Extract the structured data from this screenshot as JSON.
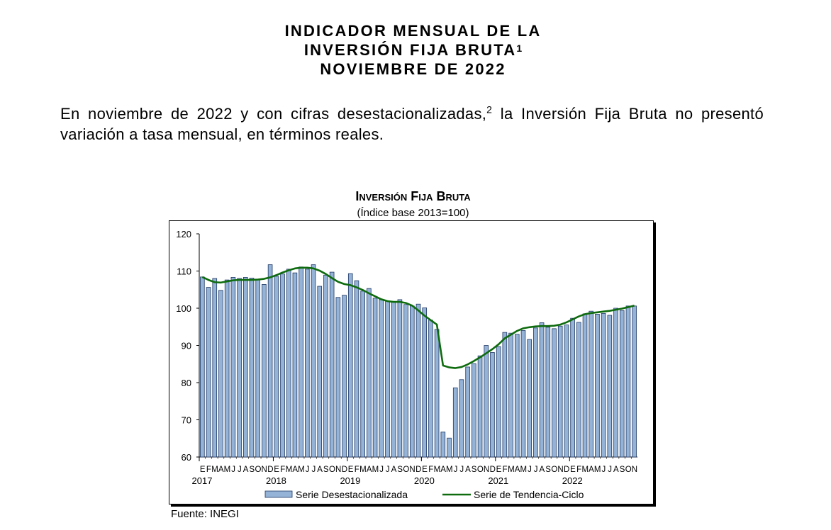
{
  "document": {
    "title_lines": [
      "INDICADOR MENSUAL DE LA",
      "INVERSIÓN FIJA BRUTA",
      "NOVIEMBRE DE 2022"
    ],
    "title_footnote": "1",
    "paragraph_before": "En noviembre de 2022 y con cifras desestacionalizadas,",
    "paragraph_footnote": "2",
    "paragraph_after": " la Inversión Fija Bruta no presentó variación a tasa mensual, en términos reales.",
    "source": "Fuente: INEGI"
  },
  "chart_data": {
    "type": "bar+line",
    "title": "Inversión Fija Bruta",
    "subtitle": "(Índice base 2013=100)",
    "ylim": [
      60,
      120
    ],
    "yticks": [
      60,
      70,
      80,
      90,
      100,
      110,
      120
    ],
    "years": [
      "2017",
      "2018",
      "2019",
      "2020",
      "2021",
      "2022"
    ],
    "month_labels": [
      "E",
      "F",
      "M",
      "A",
      "M",
      "J",
      "J",
      "A",
      "S",
      "O",
      "N",
      "D"
    ],
    "legend_position": "bottom",
    "colors": {
      "bars": "#95B3D7",
      "bar_border": "#1F3864",
      "line": "#0E6B0E"
    },
    "series": [
      {
        "name": "Serie Desestacionalizada",
        "type": "bar",
        "values": [
          108.4,
          105.6,
          108.0,
          104.8,
          107.6,
          108.3,
          108.0,
          108.3,
          108.1,
          107.8,
          106.4,
          111.7,
          108.6,
          109.2,
          110.5,
          109.5,
          111.1,
          110.5,
          111.7,
          105.9,
          108.9,
          109.7,
          102.9,
          103.5,
          109.3,
          107.4,
          104.6,
          105.3,
          102.7,
          102.3,
          101.9,
          101.6,
          102.3,
          101.0,
          100.6,
          101.1,
          100.1,
          96.8,
          94.3,
          66.7,
          65.1,
          78.6,
          80.8,
          84.2,
          85.1,
          87.2,
          90.0,
          88.1,
          89.7,
          93.5,
          93.3,
          93.0,
          94.0,
          91.6,
          94.7,
          96.1,
          94.9,
          94.5,
          95.2,
          95.5,
          97.3,
          96.2,
          98.5,
          99.2,
          98.4,
          98.6,
          98.1,
          100.0,
          99.4,
          100.6,
          100.6
        ]
      },
      {
        "name": "Serie de Tendencia-Ciclo",
        "type": "line",
        "values": [
          108.4,
          107.6,
          107.0,
          106.9,
          107.2,
          107.5,
          107.6,
          107.6,
          107.6,
          107.7,
          107.9,
          108.3,
          108.9,
          109.6,
          110.2,
          110.7,
          110.9,
          110.9,
          110.7,
          110.1,
          109.2,
          108.1,
          107.1,
          106.5,
          106.2,
          105.6,
          104.9,
          104.0,
          103.2,
          102.4,
          101.9,
          101.7,
          101.7,
          101.4,
          100.7,
          99.4,
          98.0,
          96.8,
          95.6,
          84.6,
          84.1,
          83.9,
          84.2,
          84.9,
          85.8,
          86.8,
          87.9,
          89.0,
          90.3,
          91.9,
          92.9,
          93.9,
          94.6,
          94.9,
          95.1,
          95.2,
          95.2,
          95.3,
          95.6,
          96.2,
          97.0,
          97.8,
          98.4,
          98.7,
          98.9,
          99.1,
          99.3,
          99.6,
          99.9,
          100.3,
          100.7
        ]
      }
    ]
  }
}
